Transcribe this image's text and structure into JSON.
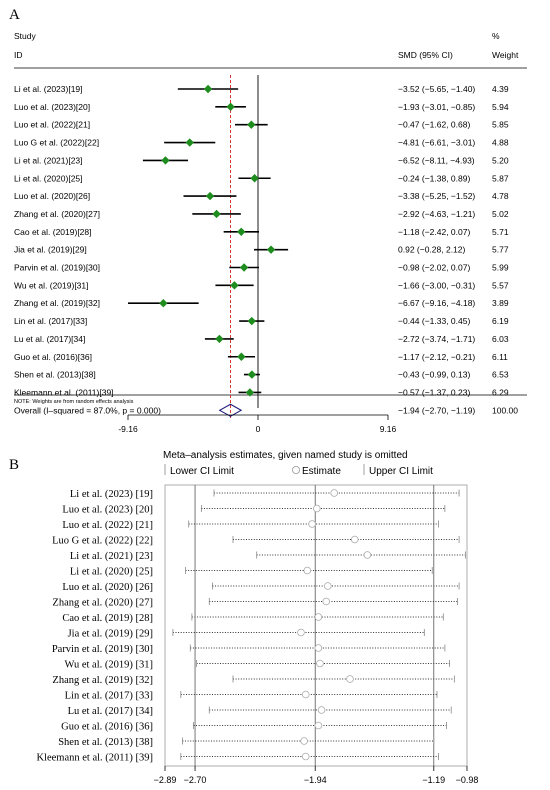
{
  "chart_data": [
    {
      "panel": "A",
      "type": "forest",
      "header": {
        "study_line1": "Study",
        "study_line2": "ID",
        "smd_label": "SMD (95% CI)",
        "weight_line1": "%",
        "weight_line2": "Weight"
      },
      "xaxis": {
        "range": [
          -9.16,
          9.16
        ],
        "ticks": [
          "-9.16",
          "0",
          "9.16"
        ]
      },
      "reference_line": -1.94,
      "studies": [
        {
          "label": "Li et al. (2023)[19]",
          "smd": -3.52,
          "lo": -5.65,
          "hi": -1.4,
          "ci_text": "−3.52 (−5.65, −1.40)",
          "weight": "4.39"
        },
        {
          "label": "Luo et al. (2023)[20]",
          "smd": -1.93,
          "lo": -3.01,
          "hi": -0.85,
          "ci_text": "−1.93 (−3.01, −0.85)",
          "weight": "5.94"
        },
        {
          "label": "Luo et al. (2022)[21]",
          "smd": -0.47,
          "lo": -1.62,
          "hi": 0.68,
          "ci_text": "−0.47 (−1.62, 0.68)",
          "weight": "5.85"
        },
        {
          "label": "Luo G et al. (2022)[22]",
          "smd": -4.81,
          "lo": -6.61,
          "hi": -3.01,
          "ci_text": "−4.81 (−6.61, −3.01)",
          "weight": "4.88"
        },
        {
          "label": "Li et al. (2021)[23]",
          "smd": -6.52,
          "lo": -8.11,
          "hi": -4.93,
          "ci_text": "−6.52 (−8.11, −4.93)",
          "weight": "5.20"
        },
        {
          "label": "Li et al. (2020)[25]",
          "smd": -0.24,
          "lo": -1.38,
          "hi": 0.89,
          "ci_text": "−0.24 (−1.38, 0.89)",
          "weight": "5.87"
        },
        {
          "label": "Luo et al. (2020)[26]",
          "smd": -3.38,
          "lo": -5.25,
          "hi": -1.52,
          "ci_text": "−3.38 (−5.25, −1.52)",
          "weight": "4.78"
        },
        {
          "label": "Zhang et al. (2020)[27]",
          "smd": -2.92,
          "lo": -4.63,
          "hi": -1.21,
          "ci_text": "−2.92 (−4.63, −1.21)",
          "weight": "5.02"
        },
        {
          "label": "Cao et al. (2019)[28]",
          "smd": -1.18,
          "lo": -2.42,
          "hi": 0.07,
          "ci_text": "−1.18 (−2.42, 0.07)",
          "weight": "5.71"
        },
        {
          "label": "Jia et al. (2019)[29]",
          "smd": 0.92,
          "lo": -0.28,
          "hi": 2.12,
          "ci_text": "0.92 (−0.28, 2.12)",
          "weight": "5.77"
        },
        {
          "label": "Parvin et al. (2019)[30]",
          "smd": -0.98,
          "lo": -2.02,
          "hi": 0.07,
          "ci_text": "−0.98 (−2.02, 0.07)",
          "weight": "5.99"
        },
        {
          "label": "Wu et al. (2019)[31]",
          "smd": -1.66,
          "lo": -3.0,
          "hi": -0.31,
          "ci_text": "−1.66 (−3.00, −0.31)",
          "weight": "5.57"
        },
        {
          "label": "Zhang et al. (2019)[32]",
          "smd": -6.67,
          "lo": -9.16,
          "hi": -4.18,
          "ci_text": "−6.67 (−9.16, −4.18)",
          "weight": "3.89"
        },
        {
          "label": "Lin et al. (2017)[33]",
          "smd": -0.44,
          "lo": -1.33,
          "hi": 0.45,
          "ci_text": "−0.44 (−1.33, 0.45)",
          "weight": "6.19"
        },
        {
          "label": "Lu et al. (2017)[34]",
          "smd": -2.72,
          "lo": -3.74,
          "hi": -1.71,
          "ci_text": "−2.72 (−3.74, −1.71)",
          "weight": "6.03"
        },
        {
          "label": "Guo et al. (2016)[36]",
          "smd": -1.17,
          "lo": -2.12,
          "hi": -0.21,
          "ci_text": "−1.17 (−2.12, −0.21)",
          "weight": "6.11"
        },
        {
          "label": "Shen et al. (2013)[38]",
          "smd": -0.43,
          "lo": -0.99,
          "hi": 0.13,
          "ci_text": "−0.43 (−0.99, 0.13)",
          "weight": "6.53"
        },
        {
          "label": "Kleemann et al. (2011)[39]",
          "smd": -0.57,
          "lo": -1.37,
          "hi": 0.23,
          "ci_text": "−0.57 (−1.37, 0.23)",
          "weight": "6.29"
        }
      ],
      "overall": {
        "label": "Overall  (I–squared = 87.0%, p = 0.000)",
        "smd": -1.94,
        "lo": -2.7,
        "hi": -1.19,
        "ci_text": "−1.94 (−2.70, −1.19)",
        "weight": "100.00"
      },
      "note": "NOTE: Weights are from random effects analysis",
      "colors": {
        "marker": "#1e8c1e",
        "diamond": "#1a1a7a",
        "refline": "#d62020"
      }
    },
    {
      "panel": "B",
      "type": "sensitivity",
      "title": "Meta–analysis estimates, given named study is omitted",
      "legend": [
        "Lower CI Limit",
        "Estimate",
        "Upper CI Limit"
      ],
      "xaxis": {
        "range": [
          -2.89,
          -0.98
        ],
        "ticks": [
          "−2.89",
          "−2.70",
          "−1.94",
          "−1.19",
          "−0.98"
        ],
        "tick_values": [
          -2.89,
          -2.7,
          -1.94,
          -1.19,
          -0.98
        ]
      },
      "vlines": [
        -2.7,
        -1.94,
        -1.19
      ],
      "rows": [
        {
          "label": "Li et al. (2023) [19]",
          "lo": -2.58,
          "est": -1.82,
          "hi": -1.03
        },
        {
          "label": "Luo et al. (2023) [20]",
          "lo": -2.66,
          "est": -1.93,
          "hi": -1.12
        },
        {
          "label": "Luo et al. (2022) [21]",
          "lo": -2.74,
          "est": -1.96,
          "hi": -1.16
        },
        {
          "label": "Luo G et al. (2022) [22]",
          "lo": -2.46,
          "est": -1.69,
          "hi": -1.03
        },
        {
          "label": "Li et al. (2021) [23]",
          "lo": -2.31,
          "est": -1.61,
          "hi": -0.99
        },
        {
          "label": "Li et al. (2020) [25]",
          "lo": -2.76,
          "est": -1.99,
          "hi": -1.2
        },
        {
          "label": "Luo et al. (2020) [26]",
          "lo": -2.59,
          "est": -1.86,
          "hi": -1.03
        },
        {
          "label": "Zhang et al. (2020) [27]",
          "lo": -2.61,
          "est": -1.87,
          "hi": -1.04
        },
        {
          "label": "Cao et al. (2019) [28]",
          "lo": -2.72,
          "est": -1.92,
          "hi": -1.13
        },
        {
          "label": "Jia et al. (2019) [29]",
          "lo": -2.84,
          "est": -2.03,
          "hi": -1.25
        },
        {
          "label": "Parvin et al. (2019) [30]",
          "lo": -2.73,
          "est": -1.92,
          "hi": -1.12
        },
        {
          "label": "Wu et al. (2019) [31]",
          "lo": -2.69,
          "est": -1.91,
          "hi": -1.09
        },
        {
          "label": "Zhang et al. (2019) [32]",
          "lo": -2.46,
          "est": -1.72,
          "hi": -1.06
        },
        {
          "label": "Lin et al. (2017) [33]",
          "lo": -2.79,
          "est": -2.0,
          "hi": -1.17
        },
        {
          "label": "Lu et al. (2017) [34]",
          "lo": -2.61,
          "est": -1.9,
          "hi": -1.08
        },
        {
          "label": "Guo et al. (2016) [36]",
          "lo": -2.71,
          "est": -1.92,
          "hi": -1.11
        },
        {
          "label": "Shen et al. (2013) [38]",
          "lo": -2.78,
          "est": -2.01,
          "hi": -1.19
        },
        {
          "label": "Kleemann et al. (2011) [39]",
          "lo": -2.79,
          "est": -2.0,
          "hi": -1.16
        }
      ]
    }
  ]
}
